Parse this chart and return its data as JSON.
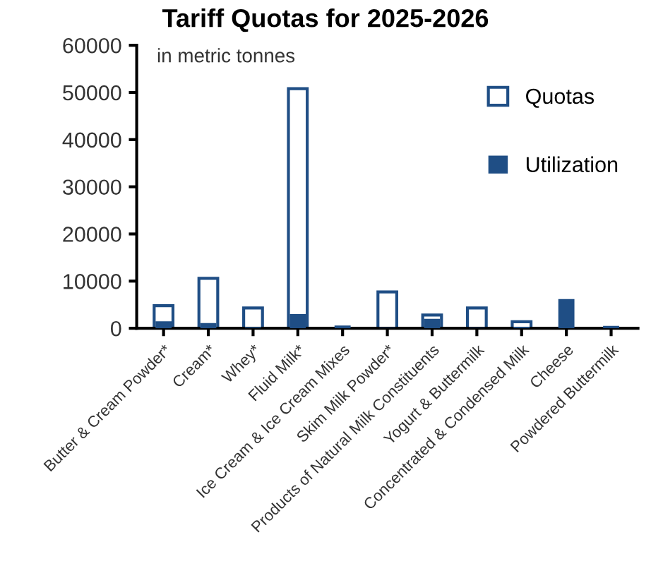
{
  "chart_data": {
    "type": "bar",
    "title": "Tariff Quotas for 2025-2026",
    "annotations": [
      "in metric tonnes"
    ],
    "categories": [
      "Butter & Cream Powder*",
      "Cream*",
      "Whey*",
      "Fluid Milk*",
      "Ice Cream & Ice Cream Mixes",
      "Skim Milk Powder*",
      "Products of Natural Milk Constituents",
      "Yogurt & Buttermilk",
      "Concentrated & Condensed Milk",
      "Cheese",
      "Powdered Buttermilk"
    ],
    "series": [
      {
        "name": "Quotas",
        "color": "#1f4e85",
        "values": [
          4800,
          10600,
          4300,
          50800,
          null,
          7700,
          2800,
          4300,
          1400,
          null,
          null
        ]
      },
      {
        "name": "Utilization",
        "color": "#1f4e85",
        "values": [
          1500,
          1100,
          200,
          3000,
          600,
          100,
          2000,
          100,
          300,
          6200,
          500
        ]
      }
    ],
    "ylim": [
      0,
      60000
    ],
    "yticks": [
      0,
      10000,
      20000,
      30000,
      40000,
      50000,
      60000
    ],
    "grid": false,
    "legend": "top right"
  }
}
